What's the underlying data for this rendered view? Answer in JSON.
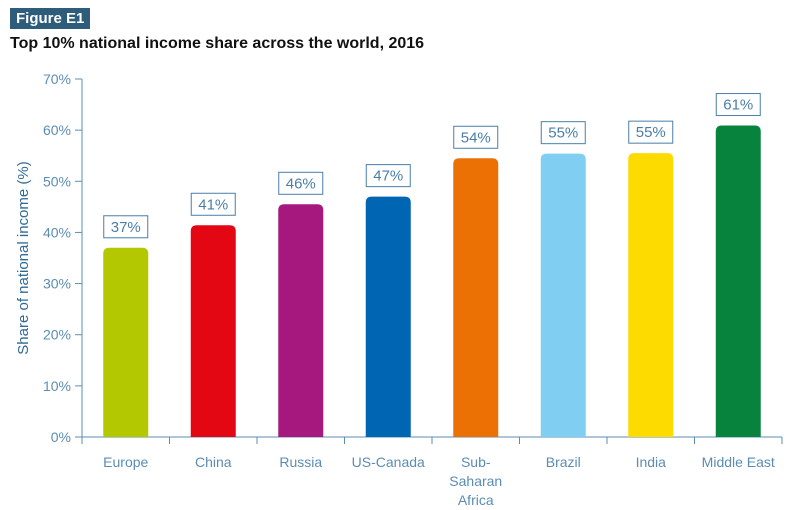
{
  "figure_label": "Figure E1",
  "chart_data": {
    "type": "bar",
    "title": "Top 10% national income share across the world, 2016",
    "xlabel": "",
    "ylabel": "Share of national income (%)",
    "ylim": [
      0,
      70
    ],
    "yticks": [
      0,
      10,
      20,
      30,
      40,
      50,
      60,
      70
    ],
    "tick_suffix": "%",
    "grid": false,
    "categories": [
      "Europe",
      "China",
      "Russia",
      "US-Canada",
      "Sub-\nSaharan\nAfrica",
      "Brazil",
      "India",
      "Middle East"
    ],
    "values": [
      37,
      41,
      46,
      47,
      54,
      55,
      55,
      61
    ],
    "data_labels": [
      "37%",
      "41%",
      "46%",
      "47%",
      "54%",
      "55%",
      "55%",
      "61%"
    ],
    "bar_heights_actual": [
      37,
      41.4,
      45.5,
      47,
      54.5,
      55.4,
      55.5,
      60.9
    ],
    "colors": [
      "#b4c800",
      "#e30613",
      "#a7187f",
      "#0065b3",
      "#ec7105",
      "#80cff3",
      "#fdda00",
      "#08833e"
    ],
    "axis_color": "#5b8db3"
  }
}
